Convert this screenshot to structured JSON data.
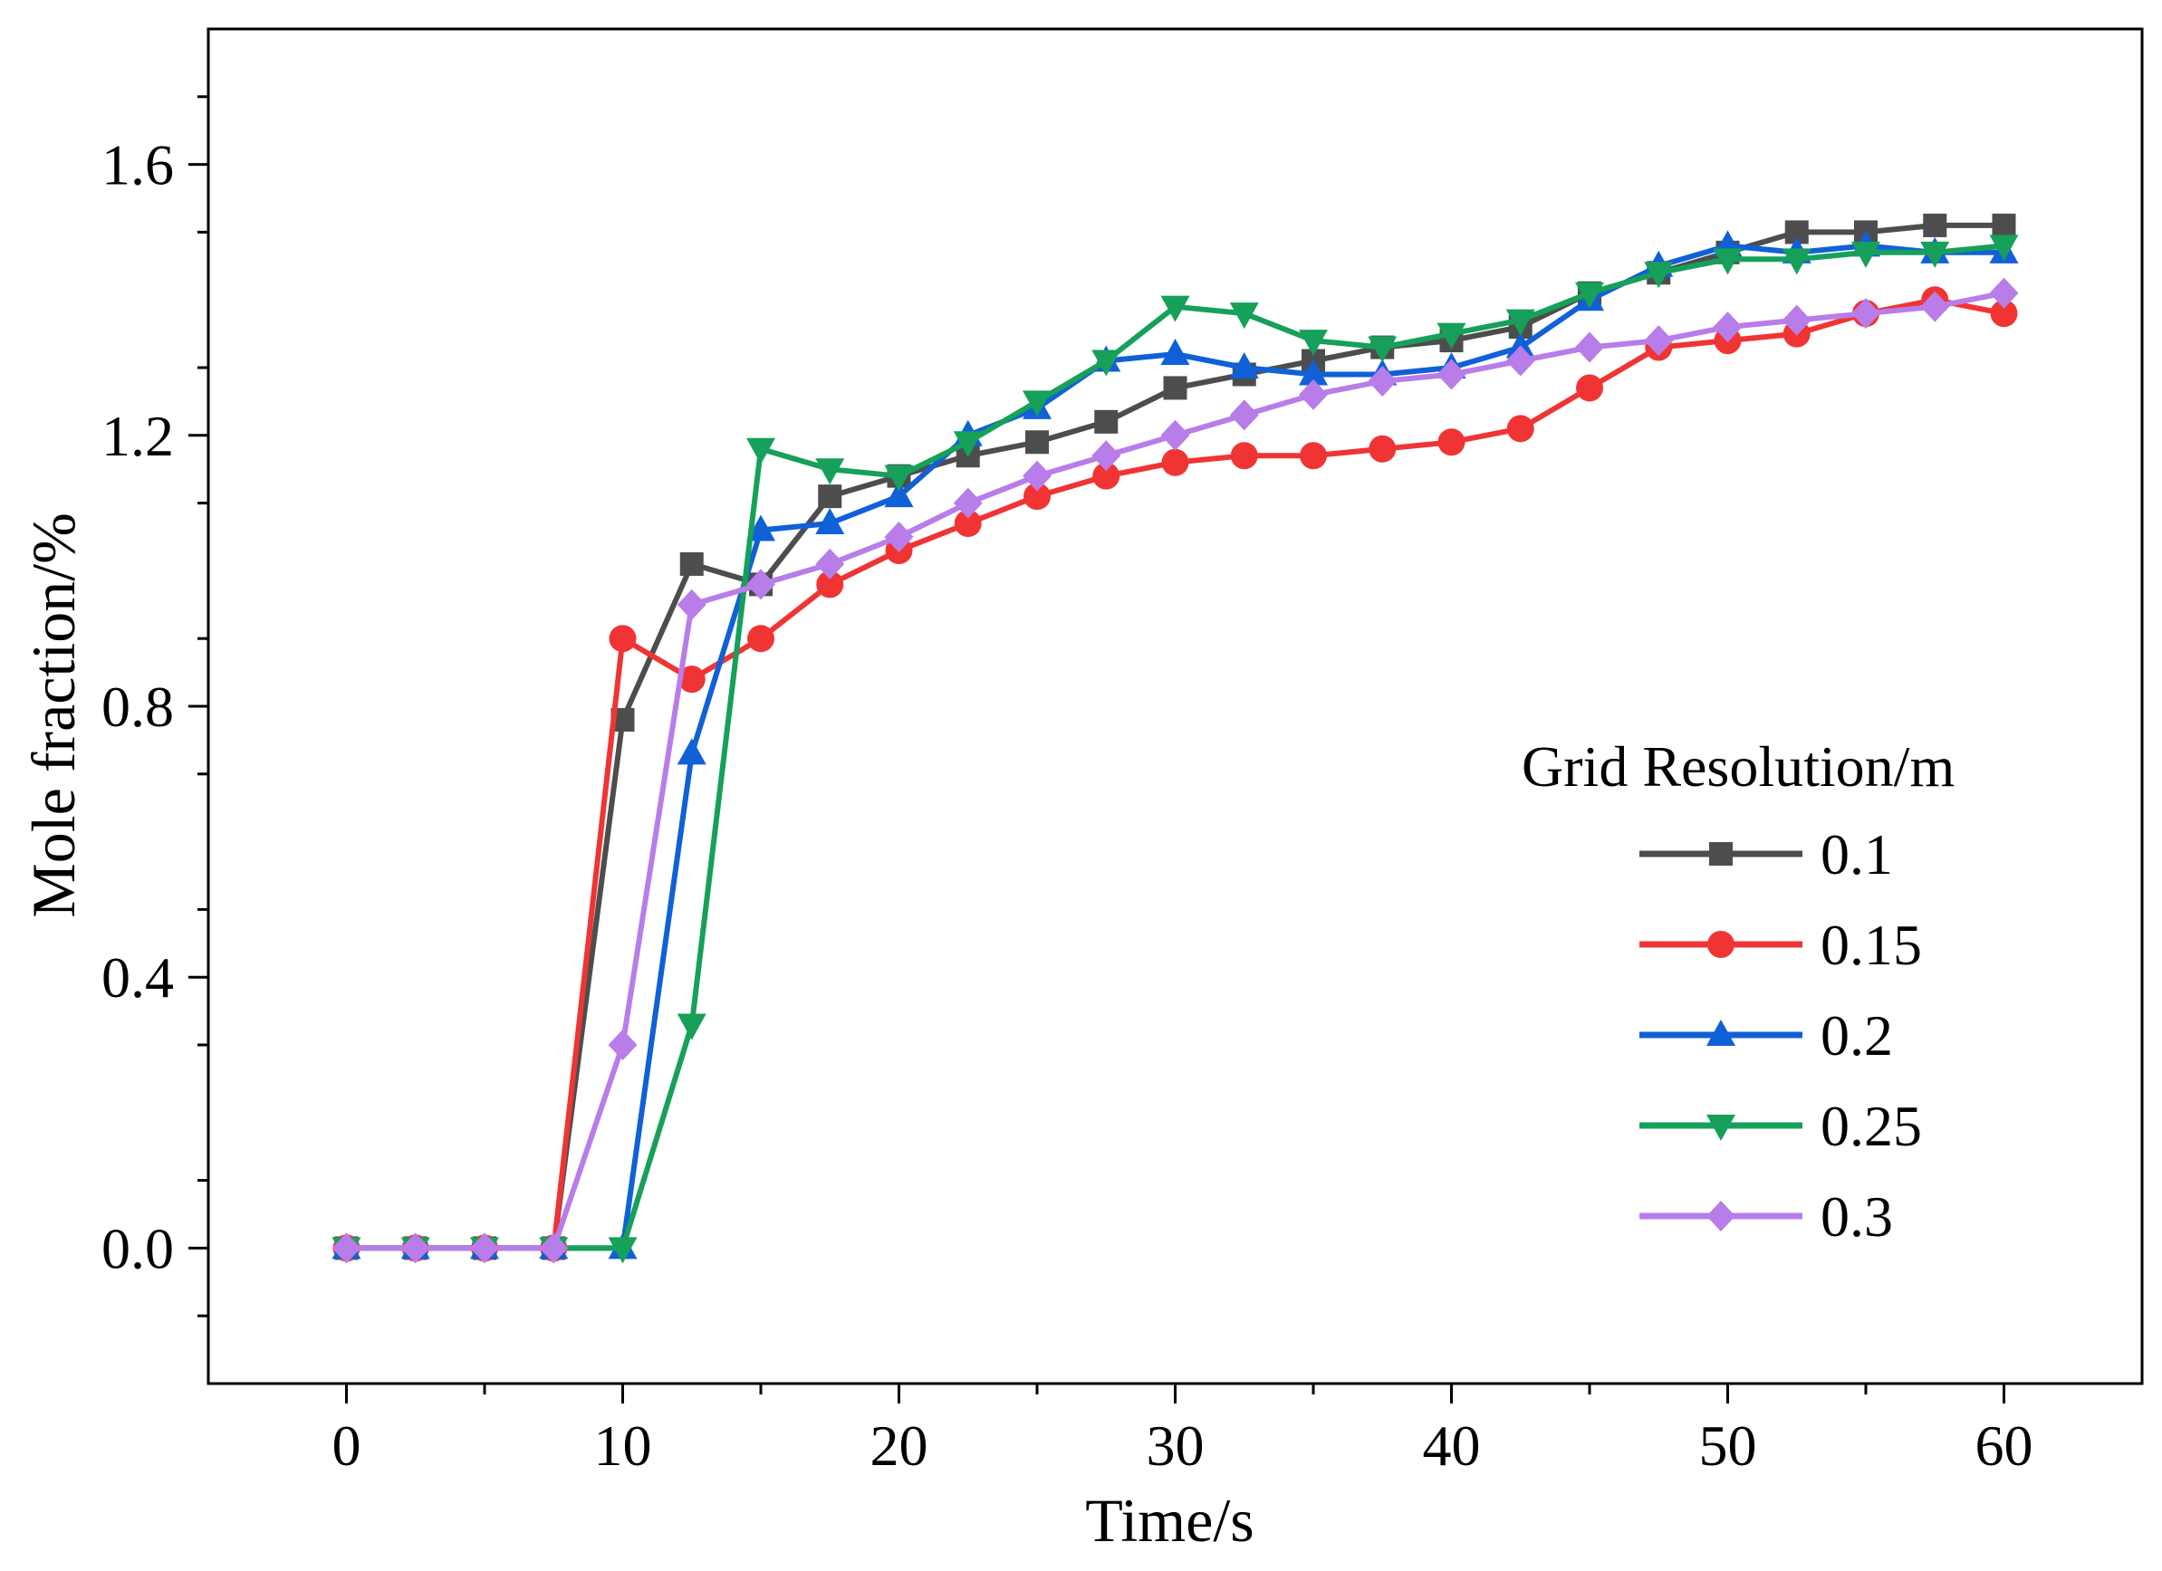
{
  "chart_data": {
    "type": "line",
    "title": "",
    "xlabel": "Time/s",
    "ylabel": "Mole fraction/%",
    "xlim": [
      -5,
      65
    ],
    "ylim": [
      -0.2,
      1.8
    ],
    "xticks": [
      0,
      10,
      20,
      30,
      40,
      50,
      60
    ],
    "xtick_labels": [
      "0",
      "10",
      "20",
      "30",
      "40",
      "50",
      "60"
    ],
    "yticks": [
      0.0,
      0.4,
      0.8,
      1.2,
      1.6
    ],
    "ytick_labels": [
      "0.0",
      "0.4",
      "0.8",
      "1.2",
      "1.6"
    ],
    "grid": false,
    "legend": {
      "title": "Grid Resolution/m",
      "position": "right"
    },
    "x": [
      0,
      2.5,
      5,
      7.5,
      10,
      12.5,
      15,
      17.5,
      20,
      22.5,
      25,
      27.5,
      30,
      32.5,
      35,
      37.5,
      40,
      42.5,
      45,
      47.5,
      50,
      52.5,
      55,
      57.5,
      60
    ],
    "series": [
      {
        "name": "0.1",
        "color": "#4d4d4d",
        "marker": "square",
        "values": [
          0,
          0,
          0,
          0,
          0.78,
          1.01,
          0.98,
          1.11,
          1.14,
          1.17,
          1.19,
          1.22,
          1.27,
          1.29,
          1.31,
          1.33,
          1.34,
          1.36,
          1.41,
          1.44,
          1.47,
          1.5,
          1.5,
          1.51,
          1.51
        ]
      },
      {
        "name": "0.15",
        "color": "#f03434",
        "marker": "circle",
        "values": [
          0,
          0,
          0,
          0,
          0.9,
          0.84,
          0.9,
          0.98,
          1.03,
          1.07,
          1.11,
          1.14,
          1.16,
          1.17,
          1.17,
          1.18,
          1.19,
          1.21,
          1.27,
          1.33,
          1.34,
          1.35,
          1.38,
          1.4,
          1.38
        ]
      },
      {
        "name": "0.2",
        "color": "#1060d8",
        "marker": "triangle-up",
        "values": [
          0,
          0,
          0,
          0,
          0,
          0.73,
          1.06,
          1.07,
          1.11,
          1.2,
          1.24,
          1.31,
          1.32,
          1.3,
          1.29,
          1.29,
          1.3,
          1.33,
          1.4,
          1.45,
          1.48,
          1.47,
          1.48,
          1.47,
          1.47
        ]
      },
      {
        "name": "0.25",
        "color": "#16a05a",
        "marker": "triangle-down",
        "values": [
          0,
          0,
          0,
          0,
          0,
          0.33,
          1.18,
          1.15,
          1.14,
          1.19,
          1.25,
          1.31,
          1.39,
          1.38,
          1.34,
          1.33,
          1.35,
          1.37,
          1.41,
          1.44,
          1.46,
          1.46,
          1.47,
          1.47,
          1.48
        ]
      },
      {
        "name": "0.3",
        "color": "#b87de8",
        "marker": "diamond",
        "values": [
          0,
          0,
          0,
          0,
          0.3,
          0.95,
          0.98,
          1.01,
          1.05,
          1.1,
          1.14,
          1.17,
          1.2,
          1.23,
          1.26,
          1.28,
          1.29,
          1.31,
          1.33,
          1.34,
          1.36,
          1.37,
          1.38,
          1.39,
          1.41
        ]
      }
    ]
  }
}
